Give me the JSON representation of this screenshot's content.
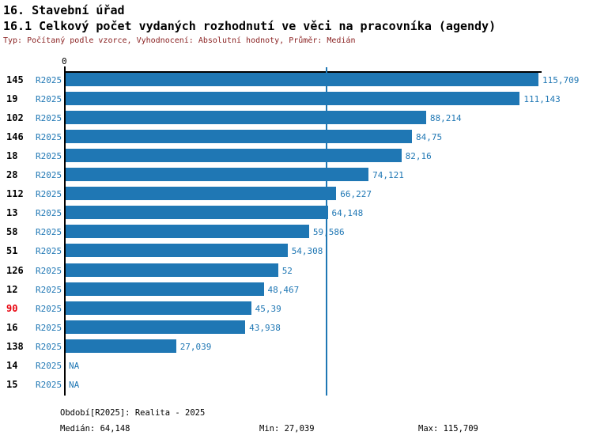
{
  "header": {
    "title": "16. Stavební úřad",
    "subtitle": "16.1 Celkový počet vydaných rozhodnutí ve věci na pracovníka (agendy)",
    "meta": "Typ: Počítaný podle vzorce, Vyhodnocení: Absolutní hodnoty, Průměr: Medián"
  },
  "chart_data": {
    "type": "bar",
    "orientation": "horizontal",
    "title": "16.1 Celkový počet vydaných rozhodnutí ve věci na pracovníka (agendy)",
    "axis_zero_label": "0",
    "x_axis_max": 115.709,
    "median_value": 64.148,
    "bar_color": "#1f77b4",
    "text_color": "#1f77b4",
    "highlight_id_color": "#e8000b",
    "na_text": "NA",
    "rows": [
      {
        "id": "145",
        "period": "R2025",
        "value": 115.709,
        "label": "115,709",
        "id_red": false
      },
      {
        "id": "19",
        "period": "R2025",
        "value": 111.143,
        "label": "111,143",
        "id_red": false
      },
      {
        "id": "102",
        "period": "R2025",
        "value": 88.214,
        "label": "88,214",
        "id_red": false
      },
      {
        "id": "146",
        "period": "R2025",
        "value": 84.75,
        "label": "84,75",
        "id_red": false
      },
      {
        "id": "18",
        "period": "R2025",
        "value": 82.16,
        "label": "82,16",
        "id_red": false
      },
      {
        "id": "28",
        "period": "R2025",
        "value": 74.121,
        "label": "74,121",
        "id_red": false
      },
      {
        "id": "112",
        "period": "R2025",
        "value": 66.227,
        "label": "66,227",
        "id_red": false
      },
      {
        "id": "13",
        "period": "R2025",
        "value": 64.148,
        "label": "64,148",
        "id_red": false
      },
      {
        "id": "58",
        "period": "R2025",
        "value": 59.586,
        "label": "59,586",
        "id_red": false
      },
      {
        "id": "51",
        "period": "R2025",
        "value": 54.308,
        "label": "54,308",
        "id_red": false
      },
      {
        "id": "126",
        "period": "R2025",
        "value": 52,
        "label": "52",
        "id_red": false
      },
      {
        "id": "12",
        "period": "R2025",
        "value": 48.467,
        "label": "48,467",
        "id_red": false
      },
      {
        "id": "90",
        "period": "R2025",
        "value": 45.39,
        "label": "45,39",
        "id_red": true
      },
      {
        "id": "16",
        "period": "R2025",
        "value": 43.938,
        "label": "43,938",
        "id_red": false
      },
      {
        "id": "138",
        "period": "R2025",
        "value": 27.039,
        "label": "27,039",
        "id_red": false
      },
      {
        "id": "14",
        "period": "R2025",
        "value": null,
        "label": "NA",
        "id_red": false
      },
      {
        "id": "15",
        "period": "R2025",
        "value": null,
        "label": "NA",
        "id_red": false
      }
    ]
  },
  "footer": {
    "period_line": "Období[R2025]: Realita - 2025",
    "median_label": "Medián: 64,148",
    "min_label": "Min: 27,039",
    "max_label": "Max: 115,709"
  }
}
